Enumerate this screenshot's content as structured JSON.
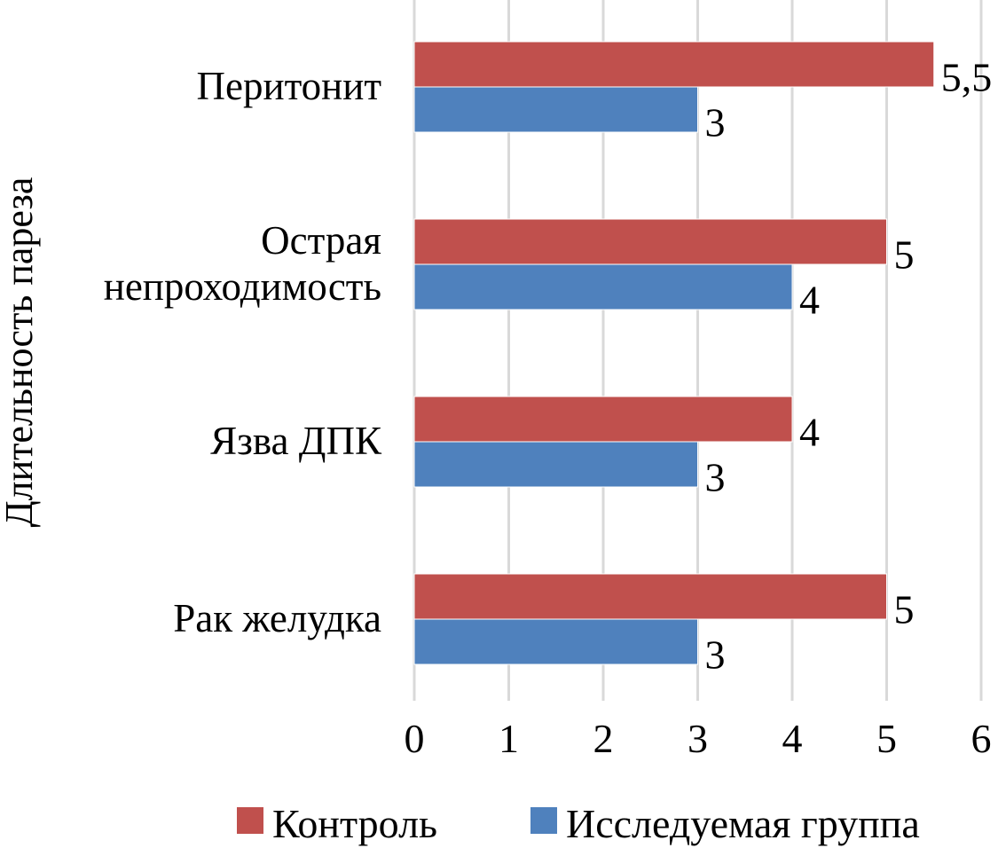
{
  "chart_data": {
    "type": "bar",
    "orientation": "horizontal",
    "categories": [
      "Рак желудка",
      "Язва ДПК",
      "Острая непроходимость",
      "Перитонит"
    ],
    "category_lines": [
      [
        "Рак желудка"
      ],
      [
        "Язва ДПК"
      ],
      [
        "Острая",
        "непроходимость"
      ],
      [
        "Перитонит"
      ]
    ],
    "series": [
      {
        "name": "Контроль",
        "values": [
          5,
          4,
          5,
          5.5
        ],
        "labels": [
          "5",
          "4",
          "5",
          "5,5"
        ],
        "color": "#C0504D"
      },
      {
        "name": "Исследуемая группа",
        "values": [
          3,
          3,
          4,
          3
        ],
        "labels": [
          "3",
          "3",
          "4",
          "3"
        ],
        "color": "#4F81BD"
      }
    ],
    "title": "",
    "xlabel": "",
    "ylabel": "Длительность пареза",
    "xlim": [
      0,
      6
    ],
    "xticks": [
      "0",
      "1",
      "2",
      "3",
      "4",
      "5",
      "6"
    ],
    "grid": "vertical",
    "legend_position": "bottom"
  }
}
